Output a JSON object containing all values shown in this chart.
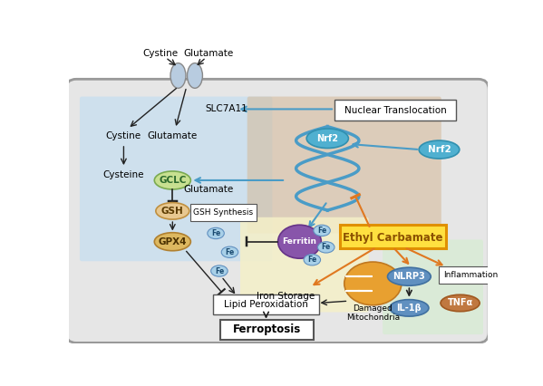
{
  "figsize": [
    5.99,
    4.26
  ],
  "dpi": 100,
  "xlim": [
    0,
    599
  ],
  "ylim": [
    0,
    426
  ],
  "cell_fc": "#e6e6e6",
  "cell_ec": "#999999",
  "blue_panel_fc": "#c8dff0",
  "brown_panel_fc": "#d4b896",
  "yellow_panel_fc": "#f5f0c8",
  "green_panel_fc": "#d8ecd4",
  "transporter_fc": "#b8cce0",
  "transporter_ec": "#888888",
  "gclc_fc": "#c8e090",
  "gclc_ec": "#7aaa50",
  "gclc_tc": "#2d6a2d",
  "gsh_fc": "#e8c890",
  "gsh_ec": "#c09040",
  "gpx4_fc": "#ddb860",
  "gpx4_ec": "#b08030",
  "nrf2_fc": "#50b0d0",
  "nrf2_ec": "#3090b0",
  "nlrp3_fc": "#6090c0",
  "nlrp3_ec": "#4070a0",
  "il1b_fc": "#6090c0",
  "il1b_ec": "#4070a0",
  "tnfa_fc": "#c07840",
  "tnfa_ec": "#a05820",
  "ferritin_fc": "#8855aa",
  "ferritin_ec": "#663388",
  "fe_fc": "#a8d0e8",
  "fe_ec": "#6090c0",
  "dm_fc": "#e8a030",
  "dm_ec": "#c07820",
  "blue_arrow": "#4a9cc7",
  "orange_arrow": "#e07820",
  "black_arrow": "#222222",
  "ec_fc": "#ffe040",
  "ec_ec": "#e09000",
  "ec_tc": "#8a5000"
}
